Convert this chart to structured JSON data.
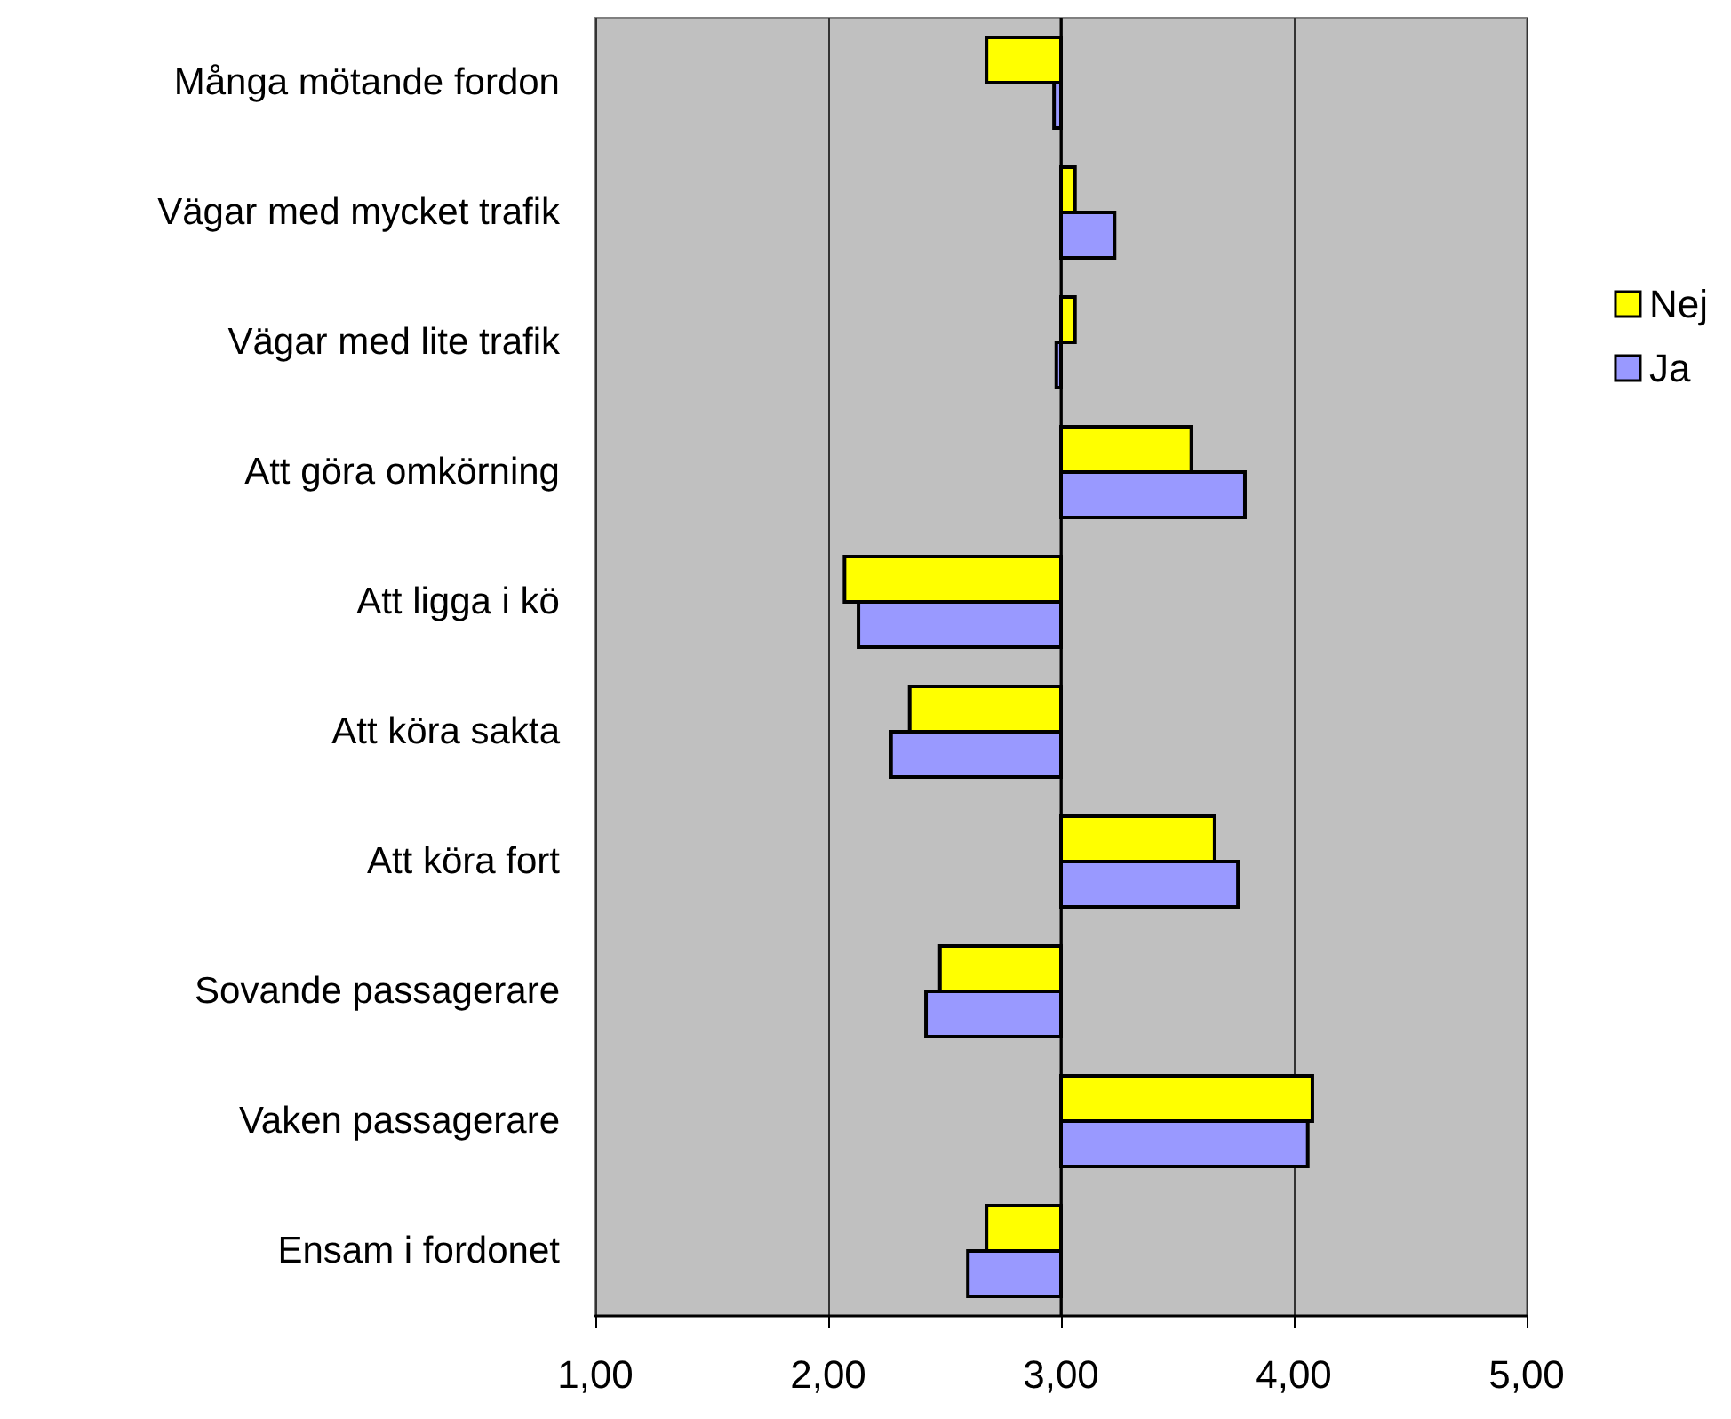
{
  "chart_data": {
    "type": "bar",
    "orientation": "horizontal",
    "categories": [
      "Många mötande fordon",
      "Vägar med mycket trafik",
      "Vägar med lite trafik",
      "Att göra omkörning",
      "Att ligga i kö",
      "Att köra sakta",
      "Att köra fort",
      "Sovande passagerare",
      "Vaken passagerare",
      "Ensam i fordonet"
    ],
    "series": [
      {
        "name": "Nej",
        "color": "#ffff00",
        "base": [
          3,
          3,
          3,
          3,
          3,
          3,
          3,
          3,
          3,
          3
        ],
        "values": [
          -0.32,
          0.06,
          0.06,
          0.56,
          -0.93,
          -0.65,
          0.66,
          -0.52,
          1.08,
          -0.32
        ]
      },
      {
        "name": "Ja",
        "color": "#9999ff",
        "base": [
          3,
          3,
          3,
          3,
          3,
          3,
          3,
          3,
          3,
          3
        ],
        "values": [
          -0.03,
          0.23,
          -0.02,
          0.79,
          -0.87,
          -0.73,
          0.76,
          -0.58,
          1.06,
          -0.4
        ]
      }
    ],
    "xlim": [
      1,
      5
    ],
    "xticks": [
      {
        "value": 1,
        "label": "1,00"
      },
      {
        "value": 2,
        "label": "2,00"
      },
      {
        "value": 3,
        "label": "3,00"
      },
      {
        "value": 4,
        "label": "4,00"
      },
      {
        "value": 5,
        "label": "5,00"
      }
    ],
    "ref_lines": [
      {
        "axis": "x",
        "value": 3,
        "color": "#000000"
      }
    ],
    "grid": "x",
    "legend": "right"
  }
}
